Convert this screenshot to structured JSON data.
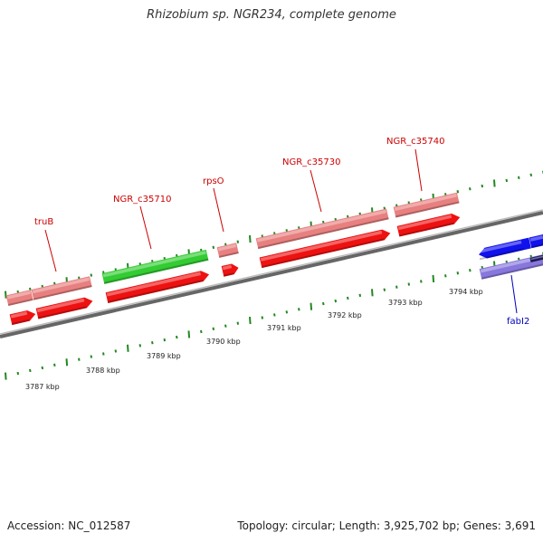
{
  "header": {
    "title": "Rhizobium sp. NGR234, complete genome"
  },
  "footer": {
    "accession": "Accession: NC_012587",
    "summary": "Topology: circular; Length: 3,925,702 bp; Genes: 3,691"
  },
  "colors": {
    "background": "#ffffff",
    "backbone": "#888888",
    "gene_red": "#ee1111",
    "gene_pink": "#e88080",
    "gene_green": "#33cc33",
    "gene_blue": "#1111ee",
    "gene_lavender": "#8877dd",
    "tick_green": "#228822",
    "label_red": "#cc0000",
    "label_blue": "#0000bb"
  },
  "gene_labels": [
    {
      "id": "truB",
      "text": "truB"
    },
    {
      "id": "NGR_c35710",
      "text": "NGR_c35710"
    },
    {
      "id": "rpsO",
      "text": "rpsO"
    },
    {
      "id": "NGR_c35730",
      "text": "NGR_c35730"
    },
    {
      "id": "NGR_c35740",
      "text": "NGR_c35740"
    },
    {
      "id": "fabI2",
      "text": "fabI2"
    }
  ],
  "scale_labels": [
    "3787 kbp",
    "3788 kbp",
    "3789 kbp",
    "3790 kbp",
    "3791 kbp",
    "3792 kbp",
    "3793 kbp",
    "3794 kbp"
  ]
}
